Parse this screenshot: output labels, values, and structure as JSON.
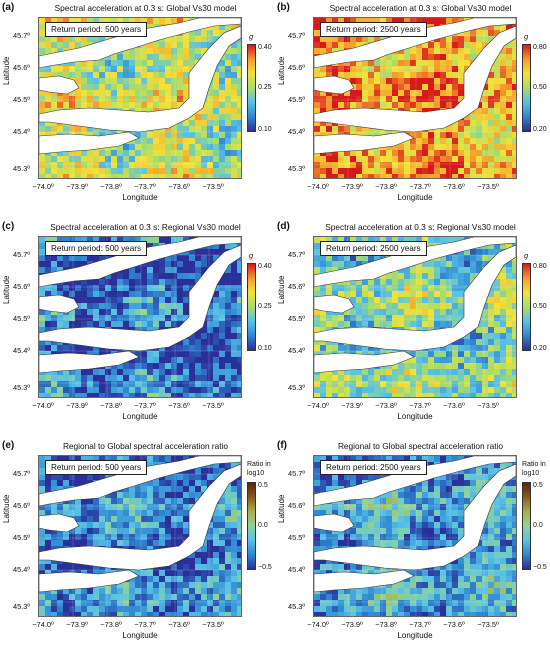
{
  "colors": {
    "water": "#ffffff",
    "spectral_scale": [
      "#2b2f9a",
      "#2f86d0",
      "#58c1e6",
      "#a9dc6a",
      "#f3e238",
      "#f59b2b",
      "#d7191c"
    ],
    "ratio_scale": [
      "#2b2f9a",
      "#2f86d0",
      "#58c1e6",
      "#8fd39a",
      "#a9b04a",
      "#8a5a22",
      "#5b2410"
    ]
  },
  "axes": {
    "ylabel": "Latitude",
    "xlabel": "Longitude",
    "lat_ticks": [
      "45.7º",
      "45.6º",
      "45.5º",
      "45.4º",
      "45.3º"
    ],
    "lon_ticks": [
      "−74.0º",
      "−73.9º",
      "−73.8º",
      "−73.7º",
      "−73.6º",
      "−73.5º"
    ]
  },
  "panels": [
    {
      "letter": "(a)",
      "title": "Spectral acceleration at 0.3 s: Global Vs30 model",
      "return_period": "Return period: 500 years",
      "colorbar": {
        "unit": "g",
        "scale": "spectral",
        "ticks": [
          "0.40",
          "0.25",
          "0.10"
        ]
      },
      "level": 0.55
    },
    {
      "letter": "(b)",
      "title": "Spectral acceleration at 0.3 s: Global Vs30 model",
      "return_period": "Return period: 2500 years",
      "colorbar": {
        "unit": "g",
        "scale": "spectral",
        "ticks": [
          "0.80",
          "0.50",
          "0.20"
        ]
      },
      "level": 0.8
    },
    {
      "letter": "(c)",
      "title": "Spectral acceleration at 0.3 s: Regional Vs30 model",
      "return_period": "Return period: 500 years",
      "colorbar": {
        "unit": "g",
        "scale": "spectral",
        "ticks": [
          "0.40",
          "0.25",
          "0.10"
        ]
      },
      "level": 0.12
    },
    {
      "letter": "(d)",
      "title": "Spectral acceleration at 0.3 s: Regional Vs30 model",
      "return_period": "Return period: 2500 years",
      "colorbar": {
        "unit": "g",
        "scale": "spectral",
        "ticks": [
          "0.80",
          "0.50",
          "0.20"
        ]
      },
      "level": 0.42
    },
    {
      "letter": "(e)",
      "title": "Regional to Global spectral acceleration ratio",
      "return_period": "Return period: 500 years",
      "colorbar": {
        "unit": "Ratio in log10",
        "scale": "ratio",
        "ticks": [
          "0.5",
          "0.0",
          "−0.5"
        ]
      },
      "level": 0.18
    },
    {
      "letter": "(f)",
      "title": "Regional to Global spectral acceleration ratio",
      "return_period": "Return period: 2500 years",
      "colorbar": {
        "unit": "Ratio in log10",
        "scale": "ratio",
        "ticks": [
          "0.5",
          "0.0",
          "−0.5"
        ]
      },
      "level": 0.26
    }
  ]
}
